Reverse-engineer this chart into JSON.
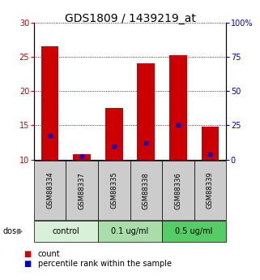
{
  "title": "GDS1809 / 1439219_at",
  "samples": [
    "GSM88334",
    "GSM88337",
    "GSM88335",
    "GSM88338",
    "GSM88336",
    "GSM88339"
  ],
  "bar_bottom": 10,
  "bar_tops": [
    26.5,
    10.8,
    17.5,
    24.0,
    25.2,
    14.8
  ],
  "percentile_values": [
    13.5,
    10.5,
    12.0,
    12.5,
    15.0,
    10.8
  ],
  "ylim_left": [
    10,
    30
  ],
  "ylim_right": [
    0,
    100
  ],
  "yticks_left": [
    10,
    15,
    20,
    25,
    30
  ],
  "yticks_right": [
    0,
    25,
    50,
    75,
    100
  ],
  "ytick_labels_right": [
    "0",
    "25",
    "50",
    "75",
    "100%"
  ],
  "bar_color": "#cc0000",
  "blue_color": "#0000cc",
  "bar_width": 0.55,
  "groups": [
    {
      "label": "control",
      "indices": [
        0,
        1
      ],
      "color": "#d8f0d8"
    },
    {
      "label": "0.1 ug/ml",
      "indices": [
        2,
        3
      ],
      "color": "#aaddaa"
    },
    {
      "label": "0.5 ug/ml",
      "indices": [
        4,
        5
      ],
      "color": "#55cc66"
    }
  ],
  "dose_label": "dose",
  "legend_count_label": "count",
  "legend_percentile_label": "percentile rank within the sample",
  "axis_label_color_left": "#cc0000",
  "axis_label_color_right": "#0000cc",
  "bg_color": "#ffffff",
  "sample_box_color": "#cccccc",
  "title_fontsize": 10,
  "tick_fontsize": 7,
  "sample_fontsize": 6,
  "legend_fontsize": 7,
  "dose_fontsize": 7,
  "group_fontsize": 7
}
